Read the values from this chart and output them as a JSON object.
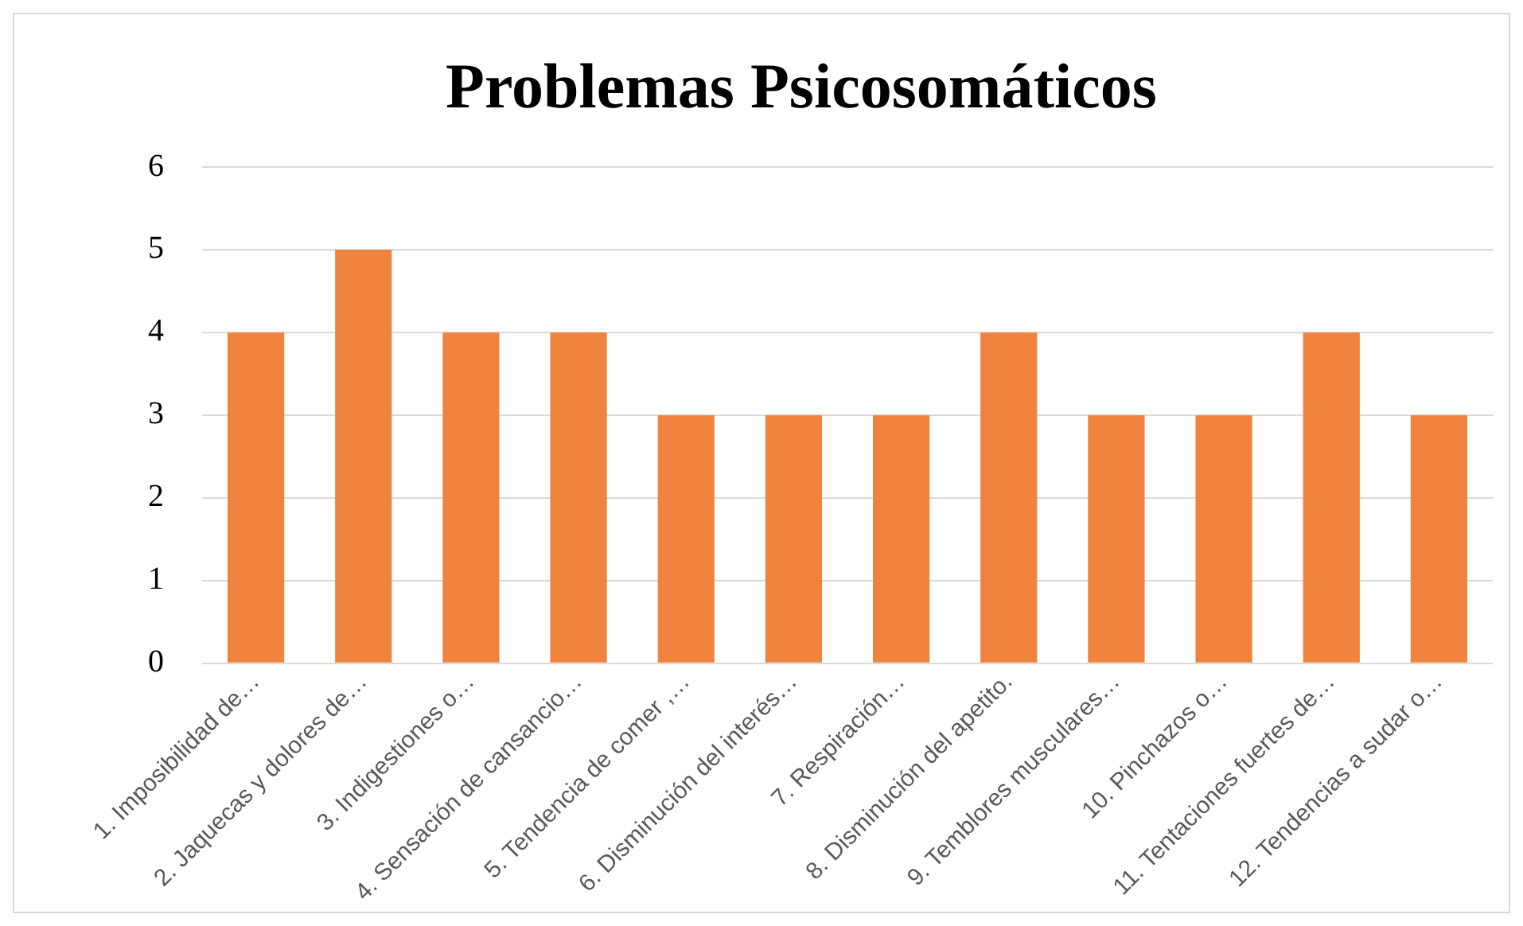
{
  "chart_data": {
    "type": "bar",
    "title": "Problemas Psicosomáticos",
    "categories": [
      "1. Imposibilidad de…",
      "2. Jaquecas y dolores de…",
      "3. Indigestiones o…",
      "4. Sensación de cansancio…",
      "5. Tendencia de comer ,…",
      "6. Disminución del interés…",
      "7. Respiración…",
      "8. Disminución del apetito.",
      "9. Temblores musculares…",
      "10. Pinchazos o…",
      "11. Tentaciones fuertes de…",
      "12. Tendencias a sudar o…"
    ],
    "values": [
      4,
      5,
      4,
      4,
      3,
      3,
      3,
      4,
      3,
      3,
      4,
      3
    ],
    "color": "#f0843f",
    "ylim": [
      0,
      6
    ],
    "yticks": [
      0,
      1,
      2,
      3,
      4,
      5,
      6
    ],
    "grid": "y",
    "legend": false
  }
}
